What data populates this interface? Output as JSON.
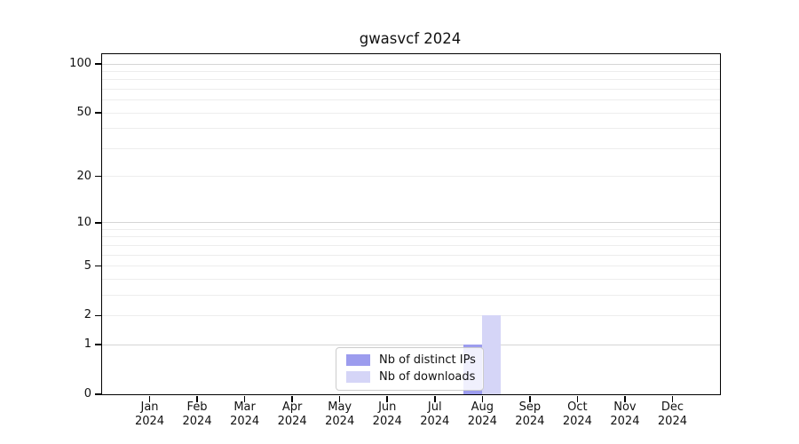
{
  "figure": {
    "title": "gwasvcf 2024"
  },
  "chart_data": {
    "type": "bar",
    "title": "gwasvcf 2024",
    "categories": [
      "Jan",
      "Feb",
      "Mar",
      "Apr",
      "May",
      "Jun",
      "Jul",
      "Aug",
      "Sep",
      "Oct",
      "Nov",
      "Dec"
    ],
    "category_year": "2024",
    "series": [
      {
        "name": "Nb of distinct IPs",
        "color": "#9c9cee",
        "values": [
          0,
          0,
          0,
          0,
          0,
          0,
          0,
          1,
          0,
          0,
          0,
          0
        ]
      },
      {
        "name": "Nb of downloads",
        "color": "#d5d5f7",
        "values": [
          0,
          0,
          0,
          0,
          0,
          0,
          0,
          2,
          0,
          0,
          0,
          0
        ]
      }
    ],
    "y_axis": {
      "scale": "log10(1+x)",
      "tick_values": [
        0,
        1,
        2,
        5,
        10,
        20,
        50,
        100
      ],
      "limits": [
        0,
        115
      ],
      "gridlines_emphasized": [
        1,
        10,
        100
      ],
      "gridlines_light": [
        2,
        3,
        4,
        5,
        6,
        7,
        8,
        9,
        20,
        30,
        40,
        50,
        60,
        70,
        80,
        90
      ]
    },
    "legend": {
      "position": "lower center",
      "entries": [
        "Nb of distinct IPs",
        "Nb of downloads"
      ]
    },
    "colors": {
      "background": "#ffffff",
      "axis": "#000000",
      "grid_major": "#d5d5d5",
      "grid_minor": "#ededed",
      "legend_border": "#cccccc"
    }
  }
}
